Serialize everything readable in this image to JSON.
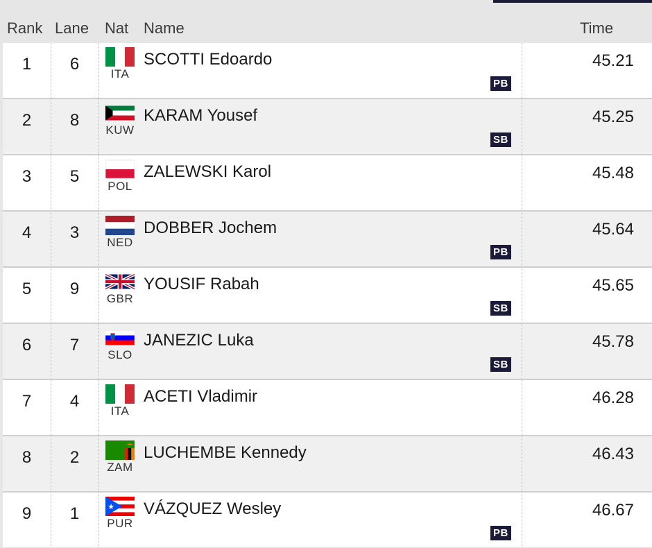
{
  "header": {
    "rank": "Rank",
    "lane": "Lane",
    "nat": "Nat",
    "name": "Name",
    "time": "Time"
  },
  "results": [
    {
      "rank": "1",
      "lane": "6",
      "nat": "ITA",
      "flag": "italy-flag-icon",
      "name": "SCOTTI Edoardo",
      "badge": "PB",
      "time": "45.21"
    },
    {
      "rank": "2",
      "lane": "8",
      "nat": "KUW",
      "flag": "kuwait-flag-icon",
      "name": "KARAM Yousef",
      "badge": "SB",
      "time": "45.25"
    },
    {
      "rank": "3",
      "lane": "5",
      "nat": "POL",
      "flag": "poland-flag-icon",
      "name": "ZALEWSKI Karol",
      "badge": "",
      "time": "45.48"
    },
    {
      "rank": "4",
      "lane": "3",
      "nat": "NED",
      "flag": "netherlands-flag-icon",
      "name": "DOBBER Jochem",
      "badge": "PB",
      "time": "45.64"
    },
    {
      "rank": "5",
      "lane": "9",
      "nat": "GBR",
      "flag": "uk-flag-icon",
      "name": "YOUSIF Rabah",
      "badge": "SB",
      "time": "45.65"
    },
    {
      "rank": "6",
      "lane": "7",
      "nat": "SLO",
      "flag": "slovenia-flag-icon",
      "name": "JANEZIC Luka",
      "badge": "SB",
      "time": "45.78"
    },
    {
      "rank": "7",
      "lane": "4",
      "nat": "ITA",
      "flag": "italy-flag-icon",
      "name": "ACETI Vladimir",
      "badge": "",
      "time": "46.28"
    },
    {
      "rank": "8",
      "lane": "2",
      "nat": "ZAM",
      "flag": "zambia-flag-icon",
      "name": "LUCHEMBE Kennedy",
      "badge": "",
      "time": "46.43"
    },
    {
      "rank": "9",
      "lane": "1",
      "nat": "PUR",
      "flag": "puerto-rico-flag-icon",
      "name": "VÁZQUEZ Wesley",
      "badge": "PB",
      "time": "46.67"
    }
  ],
  "colors": {
    "accent": "#1b1a38",
    "row_odd": "#ffffff",
    "row_even": "#f0f0f0",
    "header_bg": "#e6e6e6"
  }
}
